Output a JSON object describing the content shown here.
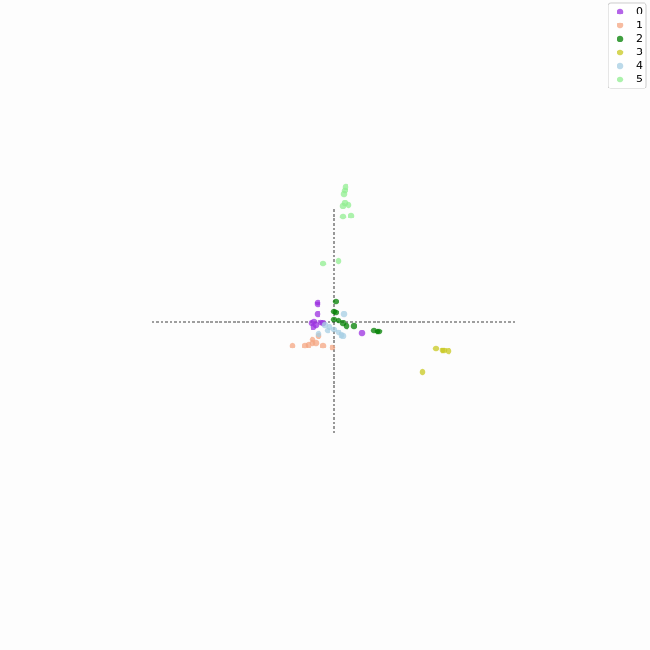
{
  "chart_data": {
    "type": "scatter",
    "xlim": [
      -370,
      350
    ],
    "ylim": [
      -363,
      357
    ],
    "crosshair": {
      "x": [
        -202,
        202
      ],
      "y": [
        -123,
        125
      ]
    },
    "legend": "upper right",
    "series": [
      {
        "name": "0",
        "color": "#9b30e0",
        "x": [
          -18,
          -18,
          -18,
          -22,
          -25,
          -20,
          -15,
          -23,
          -12,
          31
        ],
        "values": [
          22,
          20,
          9,
          1,
          -1,
          -3,
          0,
          -5,
          -1,
          -12
        ]
      },
      {
        "name": "1",
        "color": "#f4a582",
        "x": [
          -46,
          -32,
          -28,
          -24,
          -20,
          -24,
          -12,
          -2,
          -17
        ],
        "values": [
          -26,
          -26,
          -25,
          -23,
          -23,
          -19,
          -26,
          -28,
          -15
        ]
      },
      {
        "name": "2",
        "color": "#007f00",
        "x": [
          2,
          0,
          2,
          0,
          5,
          10,
          14,
          22,
          44,
          48,
          50
        ],
        "values": [
          23,
          12,
          11,
          3,
          2,
          -1,
          -4,
          -4,
          -9,
          -10,
          -10
        ]
      },
      {
        "name": "3",
        "color": "#c8c820",
        "x": [
          113,
          120,
          122,
          127,
          98
        ],
        "values": [
          -29,
          -31,
          -31,
          -32,
          -55
        ]
      },
      {
        "name": "4",
        "color": "#a6cee3",
        "x": [
          11,
          -10,
          -5,
          0,
          5,
          8,
          -17,
          -7,
          10
        ],
        "values": [
          9,
          -3,
          -5,
          -8,
          -11,
          -14,
          -13,
          -9,
          -15
        ]
      },
      {
        "name": "5",
        "color": "#90ee90",
        "x": [
          13,
          12,
          11,
          12,
          10,
          16,
          10,
          19,
          5,
          -12
        ],
        "values": [
          150,
          146,
          142,
          132,
          129,
          130,
          117,
          118,
          68,
          65
        ]
      }
    ]
  }
}
